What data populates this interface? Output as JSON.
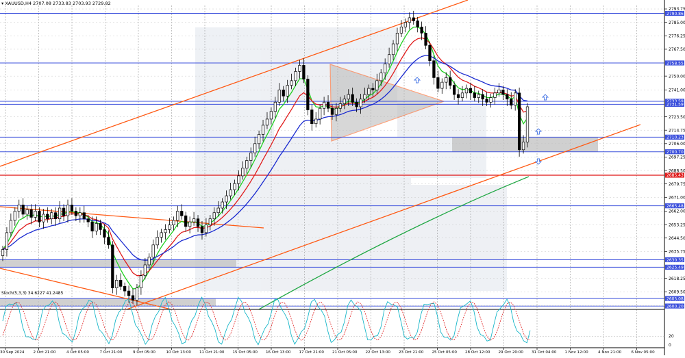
{
  "header": {
    "symbol": "XAUUSD,H4",
    "ohlc": "2707.08 2733.83 2703.93 2729.82"
  },
  "indicator": {
    "label": "Stoch(5,3,3) 34.6227 41.2485",
    "axis_ticks": [
      "20",
      "0"
    ]
  },
  "colors": {
    "candle": "#000000",
    "channel": "#ff5a14",
    "support_resistance": "#3c50dc",
    "red_level": "#e01b1b",
    "ma_fast": "#1fd01f",
    "ma_mid": "#e01b1b",
    "ma_slow": "#1a2ad0",
    "ma_long": "#22a845",
    "zone": "#c0c0c0",
    "arrow": "#4a78e6",
    "stoch_main": "#17b6c8",
    "stoch_signal": "#e01b1b"
  },
  "chart_data": {
    "type": "candlestick",
    "y_axis_ticks": [
      "2793.75",
      "2785.00",
      "2776.25",
      "2767.50",
      "2750.00",
      "2741.00",
      "2723.50",
      "2714.75",
      "2706.00",
      "2697.25",
      "2688.50",
      "2679.75",
      "2671.00",
      "2662.00",
      "2653.25",
      "2644.50",
      "2635.75",
      "2618.25",
      "2609.50"
    ],
    "price_range": [
      2598,
      2796
    ],
    "level_labels": [
      {
        "value": "2790.86",
        "color": "#3c50dc"
      },
      {
        "value": "2758.55",
        "color": "#3c50dc"
      },
      {
        "value": "2733.59",
        "color": "#3c50dc"
      },
      {
        "value": "2731.59",
        "color": "#3c50dc"
      },
      {
        "value": "2710.23",
        "color": "#3c50dc"
      },
      {
        "value": "2700.70",
        "color": "#3c50dc"
      },
      {
        "value": "2685.43",
        "color": "#e01b1b"
      },
      {
        "value": "2665.48",
        "color": "#3c50dc"
      },
      {
        "value": "2630.35",
        "color": "#3c50dc"
      },
      {
        "value": "2625.49",
        "color": "#3c50dc"
      },
      {
        "value": "2605.08",
        "color": "#3c50dc"
      },
      {
        "value": "2600.20",
        "color": "#3c50dc"
      }
    ],
    "x_labels": [
      "30 Sep 2024",
      "2 Oct 21:00",
      "4 Oct 05:00",
      "7 Oct 21:00",
      "9 Oct 05:00",
      "10 Oct 13:00",
      "11 Oct 21:00",
      "15 Oct 05:00",
      "16 Oct 13:00",
      "17 Oct 21:00",
      "21 Oct 05:00",
      "22 Oct 13:00",
      "23 Oct 21:00",
      "25 Oct 05:00",
      "28 Oct 12:00",
      "29 Oct 20:00",
      "31 Oct 04:00",
      "1 Nov 12:00",
      "4 Nov 21:00",
      "6 Nov 05:00"
    ],
    "closes": [
      2637,
      2648,
      2656,
      2662,
      2666,
      2660,
      2663,
      2658,
      2662,
      2655,
      2660,
      2657,
      2661,
      2657,
      2664,
      2659,
      2666,
      2662,
      2659,
      2661,
      2657,
      2655,
      2649,
      2654,
      2650,
      2645,
      2640,
      2612,
      2617,
      2613,
      2610,
      2607,
      2604,
      2612,
      2620,
      2627,
      2632,
      2640,
      2645,
      2648,
      2650,
      2653,
      2656,
      2662,
      2659,
      2652,
      2655,
      2657,
      2652,
      2648,
      2653,
      2657,
      2661,
      2664,
      2668,
      2672,
      2676,
      2680,
      2685,
      2690,
      2695,
      2700,
      2706,
      2712,
      2718,
      2722,
      2727,
      2733,
      2741,
      2737,
      2744,
      2747,
      2753,
      2757,
      2748,
      2728,
      2719,
      2722,
      2729,
      2733,
      2729,
      2725,
      2729,
      2732,
      2735,
      2738,
      2733,
      2730,
      2735,
      2738,
      2742,
      2741,
      2747,
      2752,
      2758,
      2764,
      2771,
      2778,
      2782,
      2785,
      2788,
      2786,
      2782,
      2778,
      2770,
      2760,
      2749,
      2742,
      2746,
      2749,
      2744,
      2738,
      2736,
      2739,
      2742,
      2739,
      2736,
      2738,
      2735,
      2733,
      2736,
      2739,
      2741,
      2738,
      2735,
      2731,
      2739,
      2702,
      2707,
      2730
    ]
  }
}
